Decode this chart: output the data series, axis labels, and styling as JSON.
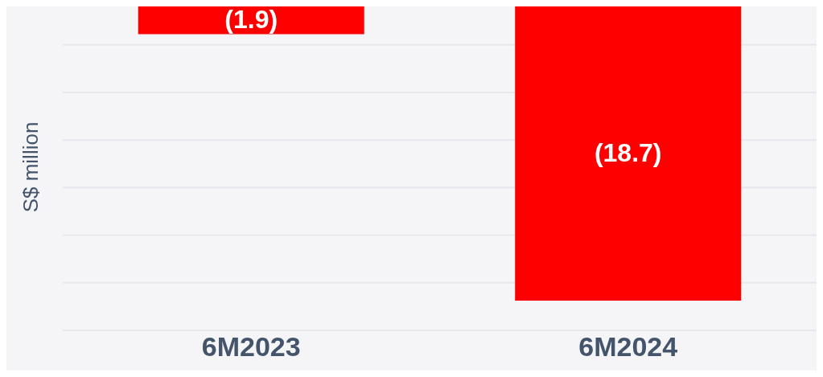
{
  "chart_data": {
    "type": "bar",
    "ylabel": "S$ million",
    "categories": [
      "6M2023",
      "6M2024"
    ],
    "values": [
      -1.9,
      -18.7
    ],
    "color": "#ff0000",
    "value_labels": [
      "(1.9)",
      "(18.7)"
    ],
    "grid": "y"
  }
}
